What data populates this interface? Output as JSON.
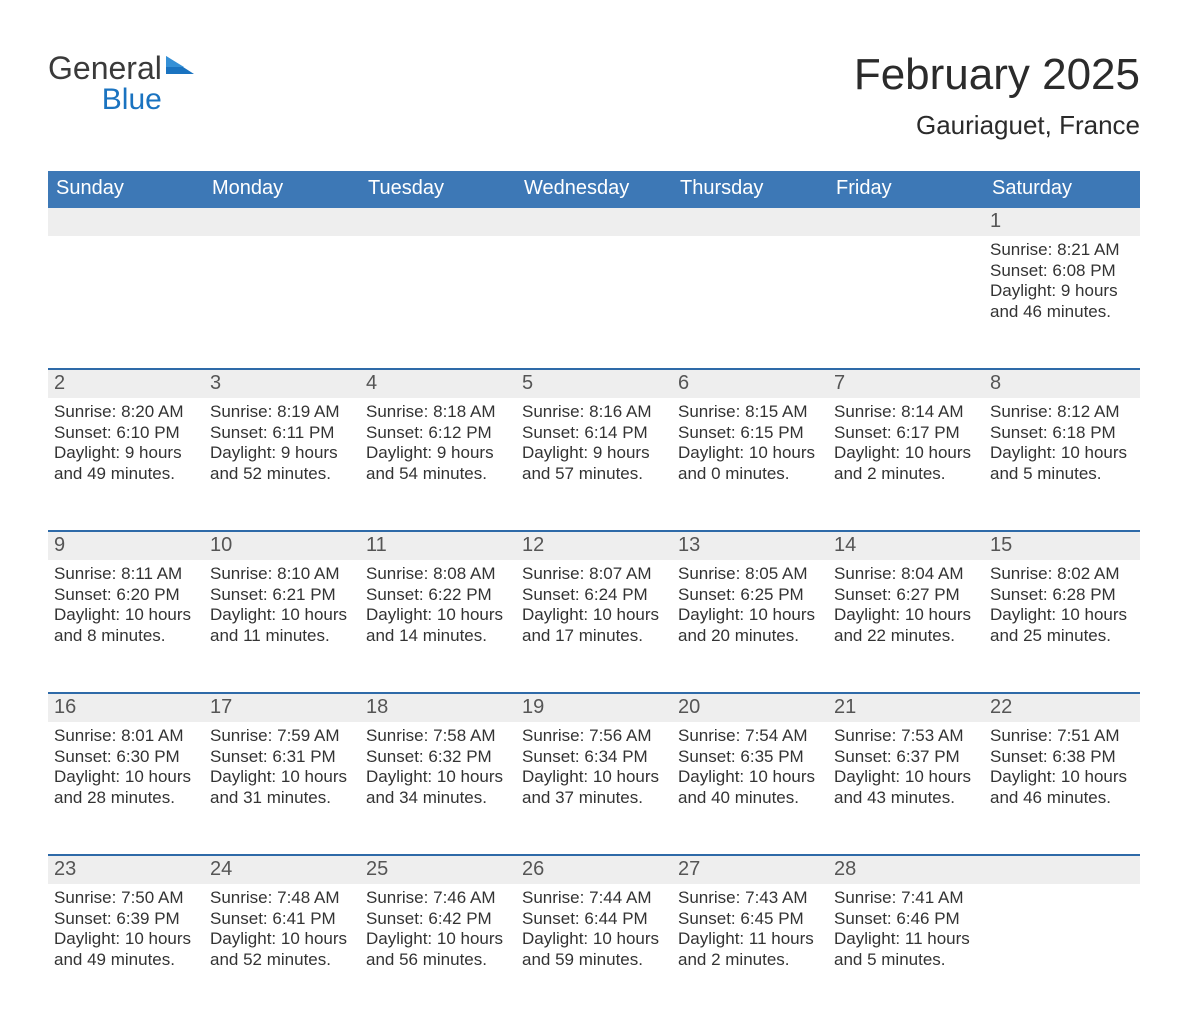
{
  "colors": {
    "header_bg": "#3d78b6",
    "week_divider": "#2e6aa8",
    "daynum_bg": "#eeeeee",
    "page_bg": "#ffffff",
    "text": "#333333",
    "logo_dark": "#3a3a3a",
    "logo_blue": "#1a73c0"
  },
  "typography": {
    "month_title_size_pt": 33,
    "location_size_pt": 20,
    "dow_size_pt": 15,
    "body_size_pt": 13,
    "font_family": "Arial / Segoe UI"
  },
  "logo": {
    "word1": "General",
    "word2": "Blue"
  },
  "title": {
    "month": "February 2025",
    "location": "Gauriaguet, France"
  },
  "days_of_week": [
    "Sunday",
    "Monday",
    "Tuesday",
    "Wednesday",
    "Thursday",
    "Friday",
    "Saturday"
  ],
  "calendar": {
    "type": "table",
    "columns": 7,
    "rows": 5,
    "start_weekday_index": 6,
    "days": [
      {
        "n": 1,
        "sunrise": "8:21 AM",
        "sunset": "6:08 PM",
        "daylight": "9 hours and 46 minutes."
      },
      {
        "n": 2,
        "sunrise": "8:20 AM",
        "sunset": "6:10 PM",
        "daylight": "9 hours and 49 minutes."
      },
      {
        "n": 3,
        "sunrise": "8:19 AM",
        "sunset": "6:11 PM",
        "daylight": "9 hours and 52 minutes."
      },
      {
        "n": 4,
        "sunrise": "8:18 AM",
        "sunset": "6:12 PM",
        "daylight": "9 hours and 54 minutes."
      },
      {
        "n": 5,
        "sunrise": "8:16 AM",
        "sunset": "6:14 PM",
        "daylight": "9 hours and 57 minutes."
      },
      {
        "n": 6,
        "sunrise": "8:15 AM",
        "sunset": "6:15 PM",
        "daylight": "10 hours and 0 minutes."
      },
      {
        "n": 7,
        "sunrise": "8:14 AM",
        "sunset": "6:17 PM",
        "daylight": "10 hours and 2 minutes."
      },
      {
        "n": 8,
        "sunrise": "8:12 AM",
        "sunset": "6:18 PM",
        "daylight": "10 hours and 5 minutes."
      },
      {
        "n": 9,
        "sunrise": "8:11 AM",
        "sunset": "6:20 PM",
        "daylight": "10 hours and 8 minutes."
      },
      {
        "n": 10,
        "sunrise": "8:10 AM",
        "sunset": "6:21 PM",
        "daylight": "10 hours and 11 minutes."
      },
      {
        "n": 11,
        "sunrise": "8:08 AM",
        "sunset": "6:22 PM",
        "daylight": "10 hours and 14 minutes."
      },
      {
        "n": 12,
        "sunrise": "8:07 AM",
        "sunset": "6:24 PM",
        "daylight": "10 hours and 17 minutes."
      },
      {
        "n": 13,
        "sunrise": "8:05 AM",
        "sunset": "6:25 PM",
        "daylight": "10 hours and 20 minutes."
      },
      {
        "n": 14,
        "sunrise": "8:04 AM",
        "sunset": "6:27 PM",
        "daylight": "10 hours and 22 minutes."
      },
      {
        "n": 15,
        "sunrise": "8:02 AM",
        "sunset": "6:28 PM",
        "daylight": "10 hours and 25 minutes."
      },
      {
        "n": 16,
        "sunrise": "8:01 AM",
        "sunset": "6:30 PM",
        "daylight": "10 hours and 28 minutes."
      },
      {
        "n": 17,
        "sunrise": "7:59 AM",
        "sunset": "6:31 PM",
        "daylight": "10 hours and 31 minutes."
      },
      {
        "n": 18,
        "sunrise": "7:58 AM",
        "sunset": "6:32 PM",
        "daylight": "10 hours and 34 minutes."
      },
      {
        "n": 19,
        "sunrise": "7:56 AM",
        "sunset": "6:34 PM",
        "daylight": "10 hours and 37 minutes."
      },
      {
        "n": 20,
        "sunrise": "7:54 AM",
        "sunset": "6:35 PM",
        "daylight": "10 hours and 40 minutes."
      },
      {
        "n": 21,
        "sunrise": "7:53 AM",
        "sunset": "6:37 PM",
        "daylight": "10 hours and 43 minutes."
      },
      {
        "n": 22,
        "sunrise": "7:51 AM",
        "sunset": "6:38 PM",
        "daylight": "10 hours and 46 minutes."
      },
      {
        "n": 23,
        "sunrise": "7:50 AM",
        "sunset": "6:39 PM",
        "daylight": "10 hours and 49 minutes."
      },
      {
        "n": 24,
        "sunrise": "7:48 AM",
        "sunset": "6:41 PM",
        "daylight": "10 hours and 52 minutes."
      },
      {
        "n": 25,
        "sunrise": "7:46 AM",
        "sunset": "6:42 PM",
        "daylight": "10 hours and 56 minutes."
      },
      {
        "n": 26,
        "sunrise": "7:44 AM",
        "sunset": "6:44 PM",
        "daylight": "10 hours and 59 minutes."
      },
      {
        "n": 27,
        "sunrise": "7:43 AM",
        "sunset": "6:45 PM",
        "daylight": "11 hours and 2 minutes."
      },
      {
        "n": 28,
        "sunrise": "7:41 AM",
        "sunset": "6:46 PM",
        "daylight": "11 hours and 5 minutes."
      }
    ]
  },
  "labels": {
    "sunrise": "Sunrise:",
    "sunset": "Sunset:",
    "daylight": "Daylight:"
  }
}
